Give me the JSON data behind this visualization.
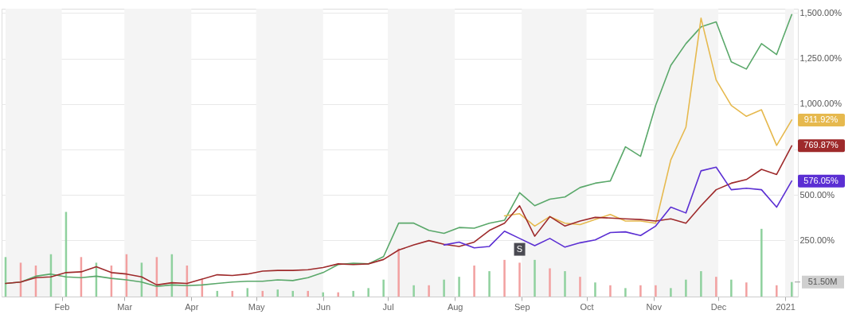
{
  "chart_data": {
    "type": "line",
    "x": [
      "2020-01-06",
      "2020-01-13",
      "2020-01-20",
      "2020-01-27",
      "2020-02-03",
      "2020-02-10",
      "2020-02-17",
      "2020-02-24",
      "2020-03-02",
      "2020-03-09",
      "2020-03-16",
      "2020-03-23",
      "2020-03-30",
      "2020-04-06",
      "2020-04-13",
      "2020-04-20",
      "2020-04-27",
      "2020-05-04",
      "2020-05-11",
      "2020-05-18",
      "2020-05-25",
      "2020-06-01",
      "2020-06-08",
      "2020-06-15",
      "2020-06-22",
      "2020-06-29",
      "2020-07-06",
      "2020-07-13",
      "2020-07-20",
      "2020-07-27",
      "2020-08-03",
      "2020-08-10",
      "2020-08-17",
      "2020-08-24",
      "2020-08-31",
      "2020-09-07",
      "2020-09-14",
      "2020-09-21",
      "2020-09-28",
      "2020-10-05",
      "2020-10-12",
      "2020-10-19",
      "2020-10-26",
      "2020-11-02",
      "2020-11-09",
      "2020-11-16",
      "2020-11-23",
      "2020-11-30",
      "2020-12-07",
      "2020-12-14",
      "2020-12-21",
      "2020-12-28",
      "2021-01-04"
    ],
    "series": [
      {
        "type": "bar",
        "axis": "y2",
        "values": [
          140,
          120,
          110,
          150,
          300,
          140,
          120,
          110,
          150,
          120,
          140,
          150,
          110,
          60,
          20,
          20,
          30,
          20,
          25,
          20,
          20,
          15,
          15,
          20,
          30,
          60,
          170,
          40,
          40,
          60,
          70,
          110,
          90,
          130,
          120,
          130,
          100,
          90,
          70,
          50,
          40,
          30,
          40,
          40,
          30,
          60,
          90,
          70,
          60,
          50,
          240,
          40,
          51.5
        ],
        "colors": [
          "#8fd19e",
          "#f2a0a0",
          "#f2a0a0",
          "#8fd19e",
          "#8fd19e",
          "#f2a0a0",
          "#8fd19e",
          "#f2a0a0",
          "#f2a0a0",
          "#8fd19e",
          "#f2a0a0",
          "#8fd19e",
          "#f2a0a0",
          "#f2a0a0",
          "#8fd19e",
          "#f2a0a0",
          "#8fd19e",
          "#f2a0a0",
          "#8fd19e",
          "#8fd19e",
          "#f2a0a0",
          "#8fd19e",
          "#f2a0a0",
          "#8fd19e",
          "#8fd19e",
          "#8fd19e",
          "#f2a0a0",
          "#8fd19e",
          "#f2a0a0",
          "#8fd19e",
          "#8fd19e",
          "#f2a0a0",
          "#8fd19e",
          "#f2a0a0",
          "#f2a0a0",
          "#8fd19e",
          "#f2a0a0",
          "#8fd19e",
          "#f2a0a0",
          "#8fd19e",
          "#f2a0a0",
          "#8fd19e",
          "#f2a0a0",
          "#f2a0a0",
          "#8fd19e",
          "#8fd19e",
          "#8fd19e",
          "#f2a0a0",
          "#8fd19e",
          "#f2a0a0",
          "#8fd19e",
          "#f2a0a0",
          "#8fd19e"
        ]
      },
      {
        "color": "#5aa86a",
        "values": [
          12,
          20,
          52,
          64,
          48,
          44,
          52,
          40,
          32,
          20,
          -4,
          4,
          0,
          4,
          12,
          20,
          24,
          24,
          32,
          28,
          44,
          72,
          116,
          124,
          120,
          160,
          344,
          344,
          304,
          288,
          320,
          316,
          344,
          360,
          512,
          440,
          476,
          488,
          540,
          564,
          576,
          764,
          712,
          992,
          1212,
          1332,
          1424,
          1452,
          1232,
          1192,
          1332,
          1272,
          1492
        ]
      },
      {
        "color": "#e6b94e",
        "values": [
          null,
          null,
          null,
          null,
          null,
          null,
          null,
          null,
          null,
          null,
          null,
          null,
          null,
          null,
          null,
          null,
          null,
          null,
          null,
          null,
          null,
          null,
          null,
          null,
          null,
          null,
          null,
          null,
          null,
          null,
          null,
          null,
          null,
          384,
          396,
          328,
          380,
          344,
          336,
          364,
          392,
          356,
          356,
          344,
          692,
          872,
          1472,
          1132,
          992,
          932,
          968,
          772,
          911.92
        ],
        "value_labels": [
          null,
          null,
          null,
          null,
          null,
          null,
          null,
          null,
          null,
          null,
          null,
          null,
          null,
          null,
          null,
          null,
          null,
          null,
          null,
          null,
          null,
          null,
          null,
          null,
          null,
          null,
          null,
          null,
          null,
          null,
          null,
          null,
          null,
          null,
          null,
          null,
          null,
          null,
          null,
          null,
          null,
          null,
          null,
          null,
          null,
          null,
          null,
          null,
          null,
          null,
          null,
          null,
          "911.92%"
        ]
      },
      {
        "color": "#9e2a2b",
        "values": [
          12,
          20,
          44,
          48,
          72,
          76,
          104,
          72,
          64,
          48,
          4,
          16,
          12,
          36,
          60,
          56,
          64,
          80,
          84,
          84,
          88,
          100,
          120,
          116,
          120,
          144,
          196,
          224,
          248,
          228,
          216,
          240,
          304,
          344,
          440,
          272,
          380,
          328,
          356,
          376,
          372,
          368,
          364,
          356,
          368,
          344,
          440,
          528,
          564,
          584,
          640,
          612,
          769.87
        ],
        "value_labels": [
          null,
          null,
          null,
          null,
          null,
          null,
          null,
          null,
          null,
          null,
          null,
          null,
          null,
          null,
          null,
          null,
          null,
          null,
          null,
          null,
          null,
          null,
          null,
          null,
          null,
          null,
          null,
          null,
          null,
          null,
          null,
          null,
          null,
          null,
          null,
          null,
          null,
          null,
          null,
          null,
          null,
          null,
          null,
          null,
          null,
          null,
          null,
          null,
          null,
          null,
          null,
          null,
          "769.87%"
        ]
      },
      {
        "color": "#5b2fd3",
        "values": [
          null,
          null,
          null,
          null,
          null,
          null,
          null,
          null,
          null,
          null,
          null,
          null,
          null,
          null,
          null,
          null,
          null,
          null,
          null,
          null,
          null,
          null,
          null,
          null,
          null,
          null,
          null,
          null,
          null,
          224,
          240,
          208,
          216,
          300,
          260,
          220,
          260,
          212,
          236,
          252,
          292,
          296,
          276,
          328,
          432,
          400,
          632,
          652,
          528,
          536,
          528,
          432,
          576.05
        ],
        "value_labels": [
          null,
          null,
          null,
          null,
          null,
          null,
          null,
          null,
          null,
          null,
          null,
          null,
          null,
          null,
          null,
          null,
          null,
          null,
          null,
          null,
          null,
          null,
          null,
          null,
          null,
          null,
          null,
          null,
          null,
          null,
          null,
          null,
          null,
          null,
          null,
          null,
          null,
          null,
          null,
          null,
          null,
          null,
          null,
          null,
          null,
          null,
          null,
          null,
          null,
          null,
          null,
          null,
          "576.05%"
        ]
      }
    ],
    "xlim": [
      "2020-01-06",
      "2021-01-05"
    ],
    "xticks": [
      {
        "value": "2020-02-01",
        "label": "Feb"
      },
      {
        "value": "2020-03-01",
        "label": "Mar"
      },
      {
        "value": "2020-04-01",
        "label": "Apr"
      },
      {
        "value": "2020-05-01",
        "label": "May"
      },
      {
        "value": "2020-06-01",
        "label": "Jun"
      },
      {
        "value": "2020-07-01",
        "label": "Jul"
      },
      {
        "value": "2020-08-01",
        "label": "Aug"
      },
      {
        "value": "2020-09-01",
        "label": "Sep"
      },
      {
        "value": "2020-10-01",
        "label": "Oct"
      },
      {
        "value": "2020-11-01",
        "label": "Nov"
      },
      {
        "value": "2020-12-01",
        "label": "Dec"
      },
      {
        "value": "2021-01-01",
        "label": "2021"
      }
    ],
    "ylim": [
      -60,
      1524
    ],
    "yticks": [
      {
        "value": 250,
        "label": "250.00%"
      },
      {
        "value": 500,
        "label": "500.00%"
      },
      {
        "value": 750,
        "label": null
      },
      {
        "value": 1000,
        "label": "1,000.00%"
      },
      {
        "value": 1250,
        "label": "1,250.00%"
      },
      {
        "value": 1500,
        "label": "1,500.00%"
      }
    ],
    "y2lim": [
      0,
      1020
    ],
    "y2ticks": [
      {
        "value": 51.5,
        "label": "51.50M"
      }
    ],
    "grid": "y",
    "bands": [
      {
        "axis": "x",
        "from": "2020-01-06",
        "to": "2020-02-01",
        "color": "#f4f4f4"
      },
      {
        "axis": "x",
        "from": "2020-03-01",
        "to": "2020-04-01",
        "color": "#f4f4f4"
      },
      {
        "axis": "x",
        "from": "2020-05-01",
        "to": "2020-06-01",
        "color": "#f4f4f4"
      },
      {
        "axis": "x",
        "from": "2020-07-01",
        "to": "2020-08-01",
        "color": "#f4f4f4"
      },
      {
        "axis": "x",
        "from": "2020-09-01",
        "to": "2020-10-01",
        "color": "#f4f4f4"
      },
      {
        "axis": "x",
        "from": "2020-11-01",
        "to": "2020-12-01",
        "color": "#f4f4f4"
      },
      {
        "axis": "x",
        "from": "2021-01-01",
        "to": "2021-01-05",
        "color": "#f4f4f4"
      }
    ],
    "annotations": [
      {
        "text": "S",
        "x": "2020-08-31",
        "y": 200
      }
    ]
  }
}
